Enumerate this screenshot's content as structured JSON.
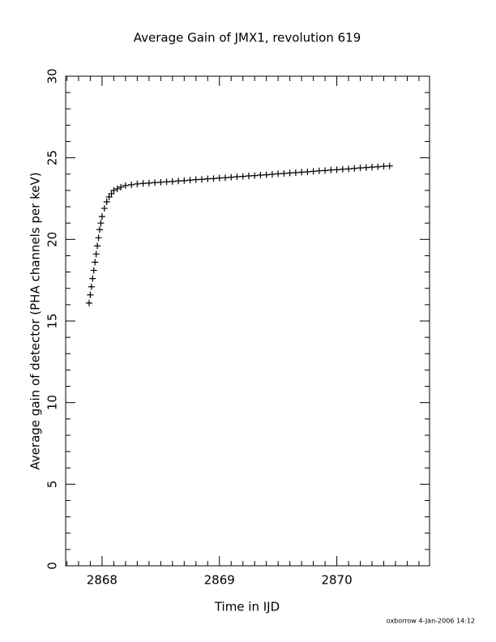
{
  "chart_data": {
    "type": "scatter",
    "title": "Average Gain of JMX1, revolution 619",
    "x_label": "Time in IJD",
    "y_label": "Average gain of detector (PHA channels per keV)",
    "footer": "oxborrow  4-Jan-2006 14:12",
    "marker": "plus",
    "color": "#000000",
    "xlim": [
      2867.69,
      2870.79
    ],
    "ylim": [
      0,
      30
    ],
    "xticks": [
      2868,
      2869,
      2870
    ],
    "yticks": [
      0,
      5,
      10,
      15,
      20,
      25,
      30
    ],
    "xminorticks": [
      2867.7,
      2867.8,
      2867.9,
      2868.1,
      2868.2,
      2868.3,
      2868.4,
      2868.5,
      2868.6,
      2868.7,
      2868.8,
      2868.9,
      2869.1,
      2869.2,
      2869.3,
      2869.4,
      2869.5,
      2869.6,
      2869.7,
      2869.8,
      2869.9,
      2870.1,
      2870.2,
      2870.3,
      2870.4,
      2870.5,
      2870.6,
      2870.7
    ],
    "yminorticks": [
      1,
      2,
      3,
      4,
      6,
      7,
      8,
      9,
      11,
      12,
      13,
      14,
      16,
      17,
      18,
      19,
      21,
      22,
      23,
      24,
      26,
      27,
      28,
      29
    ],
    "x": [
      2867.89,
      2867.9,
      2867.91,
      2867.92,
      2867.93,
      2867.94,
      2867.95,
      2867.96,
      2867.97,
      2867.98,
      2867.99,
      2868.0,
      2868.02,
      2868.04,
      2868.06,
      2868.08,
      2868.1,
      2868.13,
      2868.16,
      2868.2,
      2868.25,
      2868.3,
      2868.35,
      2868.4,
      2868.45,
      2868.5,
      2868.55,
      2868.6,
      2868.65,
      2868.7,
      2868.75,
      2868.8,
      2868.85,
      2868.9,
      2868.95,
      2869.0,
      2869.05,
      2869.1,
      2869.15,
      2869.2,
      2869.25,
      2869.3,
      2869.35,
      2869.4,
      2869.45,
      2869.5,
      2869.55,
      2869.6,
      2869.65,
      2869.7,
      2869.75,
      2869.8,
      2869.85,
      2869.9,
      2869.95,
      2870.0,
      2870.05,
      2870.1,
      2870.15,
      2870.2,
      2870.25,
      2870.3,
      2870.35,
      2870.4,
      2870.45
    ],
    "values": [
      16.1,
      16.6,
      17.1,
      17.6,
      18.1,
      18.6,
      19.1,
      19.6,
      20.1,
      20.6,
      21.0,
      21.4,
      21.9,
      22.3,
      22.6,
      22.8,
      23.0,
      23.1,
      23.2,
      23.3,
      23.35,
      23.4,
      23.43,
      23.45,
      23.48,
      23.5,
      23.53,
      23.55,
      23.58,
      23.6,
      23.63,
      23.66,
      23.68,
      23.71,
      23.73,
      23.76,
      23.78,
      23.81,
      23.84,
      23.86,
      23.89,
      23.91,
      23.94,
      23.96,
      23.99,
      24.02,
      24.04,
      24.07,
      24.09,
      24.12,
      24.14,
      24.17,
      24.2,
      24.22,
      24.25,
      24.27,
      24.3,
      24.32,
      24.35,
      24.38,
      24.4,
      24.43,
      24.45,
      24.48,
      24.5
    ]
  }
}
